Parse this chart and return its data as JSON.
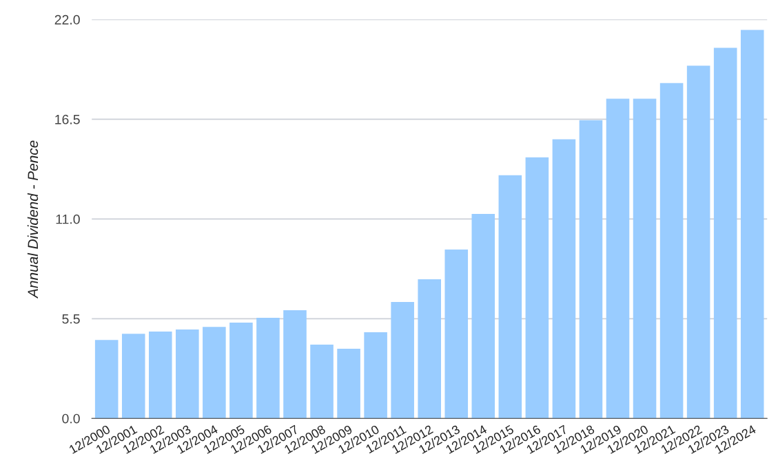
{
  "chart_data": {
    "type": "bar",
    "ylabel": "Annual Dividend - Pence",
    "categories": [
      "12/2000",
      "12/2001",
      "12/2002",
      "12/2003",
      "12/2004",
      "12/2005",
      "12/2006",
      "12/2007",
      "12/2008",
      "12/2009",
      "12/2010",
      "12/2011",
      "12/2012",
      "12/2013",
      "12/2014",
      "12/2015",
      "12/2016",
      "12/2017",
      "12/2018",
      "12/2019",
      "12/2020",
      "12/2021",
      "12/2022",
      "12/2023",
      "12/2024"
    ],
    "values": [
      4.33,
      4.67,
      4.79,
      4.9,
      5.05,
      5.28,
      5.55,
      5.97,
      4.07,
      3.84,
      4.75,
      6.42,
      7.67,
      9.31,
      11.28,
      13.41,
      14.4,
      15.39,
      16.45,
      17.63,
      17.63,
      18.5,
      19.45,
      20.44,
      21.43
    ],
    "color": "#99ccff",
    "ylim": [
      0,
      22
    ],
    "yticks": [
      {
        "value": 0,
        "label": "0.0"
      },
      {
        "value": 5.5,
        "label": "5.5"
      },
      {
        "value": 11,
        "label": "11.0"
      },
      {
        "value": 16.5,
        "label": "16.5"
      },
      {
        "value": 22,
        "label": "22.0"
      }
    ],
    "grid": "y"
  }
}
